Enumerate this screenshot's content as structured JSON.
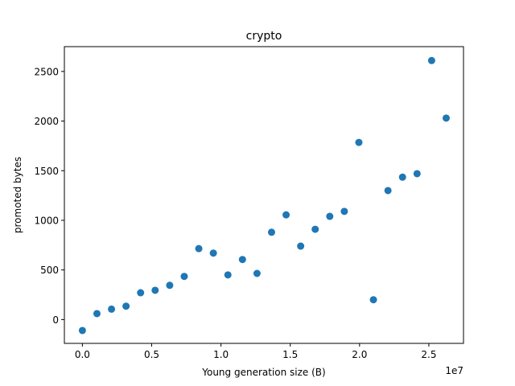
{
  "chart_data": {
    "type": "scatter",
    "title": "crypto",
    "xlabel": "Young generation size (B)",
    "ylabel": "promoted bytes",
    "x_offset_label": "1e7",
    "xlim": [
      -1300000,
      27500000
    ],
    "ylim": [
      -240,
      2750
    ],
    "x_ticks": [
      0,
      5000000,
      10000000,
      15000000,
      20000000,
      25000000
    ],
    "x_tick_labels": [
      "0.0",
      "0.5",
      "1.0",
      "1.5",
      "2.0",
      "2.5"
    ],
    "y_ticks": [
      0,
      500,
      1000,
      1500,
      2000,
      2500
    ],
    "y_tick_labels": [
      "0",
      "500",
      "1000",
      "1500",
      "2000",
      "2500"
    ],
    "grid": false,
    "marker_color": "#1f77b4",
    "points": [
      {
        "x": 0,
        "y": -110
      },
      {
        "x": 1050000,
        "y": 60
      },
      {
        "x": 2100000,
        "y": 105
      },
      {
        "x": 3150000,
        "y": 135
      },
      {
        "x": 4200000,
        "y": 270
      },
      {
        "x": 5250000,
        "y": 295
      },
      {
        "x": 6300000,
        "y": 345
      },
      {
        "x": 7350000,
        "y": 435
      },
      {
        "x": 8400000,
        "y": 715
      },
      {
        "x": 9450000,
        "y": 670
      },
      {
        "x": 10500000,
        "y": 450
      },
      {
        "x": 11550000,
        "y": 605
      },
      {
        "x": 12600000,
        "y": 465
      },
      {
        "x": 13650000,
        "y": 880
      },
      {
        "x": 14700000,
        "y": 1055
      },
      {
        "x": 15750000,
        "y": 740
      },
      {
        "x": 16800000,
        "y": 910
      },
      {
        "x": 17850000,
        "y": 1040
      },
      {
        "x": 18900000,
        "y": 1090
      },
      {
        "x": 19950000,
        "y": 1785
      },
      {
        "x": 21000000,
        "y": 200
      },
      {
        "x": 22050000,
        "y": 1300
      },
      {
        "x": 23100000,
        "y": 1435
      },
      {
        "x": 24150000,
        "y": 1470
      },
      {
        "x": 25200000,
        "y": 2610
      },
      {
        "x": 26250000,
        "y": 2030
      }
    ]
  }
}
